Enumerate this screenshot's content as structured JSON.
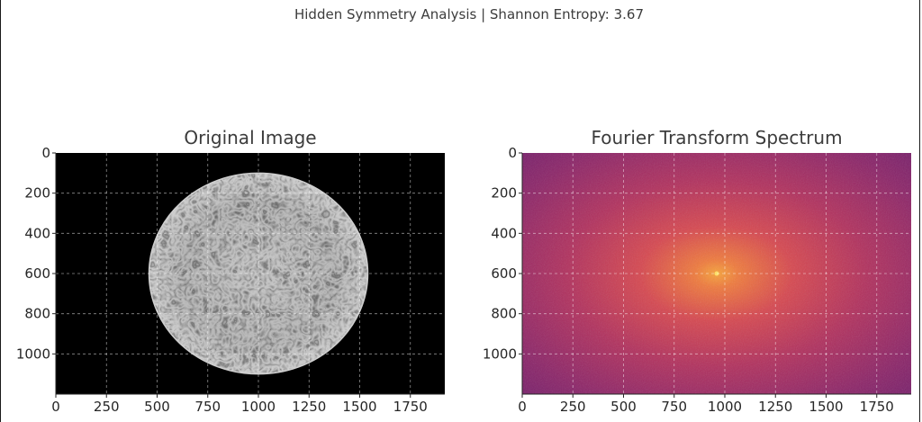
{
  "figure": {
    "suptitle": "Hidden Symmetry Analysis | Shannon Entropy: 3.67"
  },
  "chart_data": [
    {
      "type": "image",
      "title": "Original Image",
      "colormap": "gray",
      "xlim": [
        0,
        1920
      ],
      "ylim": [
        1200,
        0
      ],
      "xticks": [
        0,
        250,
        500,
        750,
        1000,
        1250,
        1500,
        1750
      ],
      "yticks": [
        0,
        200,
        400,
        600,
        800,
        1000
      ],
      "grid": true,
      "content": {
        "shape": "textured bright disc on black background",
        "center": [
          1000,
          600
        ],
        "radius_x": 540,
        "radius_y": 500
      }
    },
    {
      "type": "heatmap",
      "title": "Fourier Transform Spectrum",
      "colormap": "inferno",
      "xlim": [
        0,
        1920
      ],
      "ylim": [
        1200,
        0
      ],
      "xticks": [
        0,
        250,
        500,
        750,
        1000,
        1250,
        1500,
        1750
      ],
      "yticks": [
        0,
        200,
        400,
        600,
        800,
        1000
      ],
      "grid": true,
      "content": {
        "peak_center": [
          960,
          600
        ],
        "falloff": "radial glow brightest at center fading to magenta-purple edges"
      }
    }
  ]
}
